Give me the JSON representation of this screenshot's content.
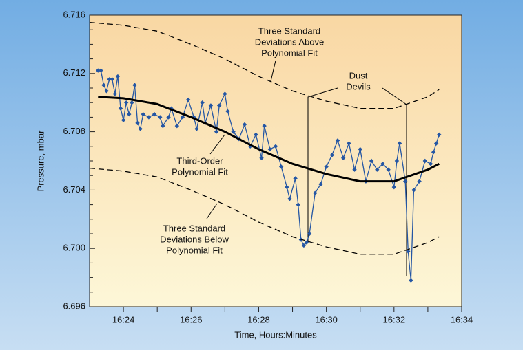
{
  "chart_data": {
    "type": "line",
    "xlabel": "Time, Hours:Minutes",
    "ylabel": "Pressure, mbar",
    "xlim": [
      "16:23",
      "16:34"
    ],
    "xticks": [
      "16:24",
      "16:26",
      "16:28",
      "16:30",
      "16:32",
      "16:34"
    ],
    "xminor": [
      "16:25",
      "16:27",
      "16:29",
      "16:31",
      "16:33"
    ],
    "ylim": [
      6.696,
      6.716
    ],
    "yticks": [
      {
        "value": 6.696,
        "label": "6.696"
      },
      {
        "value": 6.7,
        "label": "6.700"
      },
      6.704,
      6.708,
      6.712,
      6.716
    ],
    "yminor": [
      6.697,
      6.698,
      6.699,
      6.701,
      6.702,
      6.703,
      6.705,
      6.706,
      6.707,
      6.709,
      6.71,
      6.711,
      6.713,
      6.714,
      6.715
    ],
    "series": [
      {
        "color": "#2456a4",
        "marker": "diamond",
        "dash": false,
        "width": 1.3,
        "x": [
          "16:23:15",
          "16:23:20",
          "16:23:25",
          "16:23:30",
          "16:23:35",
          "16:23:40",
          "16:23:45",
          "16:23:50",
          "16:23:55",
          "16:24:00",
          "16:24:05",
          "16:24:10",
          "16:24:15",
          "16:24:20",
          "16:24:25",
          "16:24:30",
          "16:24:35",
          "16:24:45",
          "16:24:55",
          "16:25:05",
          "16:25:10",
          "16:25:20",
          "16:25:25",
          "16:25:35",
          "16:25:45",
          "16:25:55",
          "16:26:05",
          "16:26:10",
          "16:26:20",
          "16:26:25",
          "16:26:35",
          "16:26:45",
          "16:26:50",
          "16:27:00",
          "16:27:05",
          "16:27:15",
          "16:27:25",
          "16:27:35",
          "16:27:45",
          "16:27:55",
          "16:28:05",
          "16:28:10",
          "16:28:20",
          "16:28:30",
          "16:28:40",
          "16:28:50",
          "16:28:55",
          "16:29:05",
          "16:29:10",
          "16:29:15",
          "16:29:20",
          "16:29:25",
          "16:29:30",
          "16:29:40",
          "16:29:50",
          "16:30:00",
          "16:30:10",
          "16:30:20",
          "16:30:30",
          "16:30:40",
          "16:30:50",
          "16:31:00",
          "16:31:10",
          "16:31:20",
          "16:31:30",
          "16:31:40",
          "16:31:50",
          "16:32:00",
          "16:32:05",
          "16:32:10",
          "16:32:20",
          "16:32:25",
          "16:32:30",
          "16:32:35",
          "16:32:45",
          "16:32:55",
          "16:33:05",
          "16:33:10",
          "16:33:15",
          "16:33:20"
        ],
        "values": [
          6.7122,
          6.7122,
          6.7112,
          6.7108,
          6.7116,
          6.7116,
          6.7106,
          6.7118,
          6.7096,
          6.7088,
          6.71,
          6.7092,
          6.71,
          6.7112,
          6.7086,
          6.7082,
          6.7092,
          6.709,
          6.7092,
          6.709,
          6.7084,
          6.709,
          6.7096,
          6.7084,
          6.709,
          6.7102,
          6.709,
          6.7082,
          6.71,
          6.7086,
          6.7098,
          6.708,
          6.7098,
          6.7106,
          6.7094,
          6.708,
          6.7075,
          6.7085,
          6.707,
          6.7078,
          6.7062,
          6.7084,
          6.7068,
          6.707,
          6.7056,
          6.7042,
          6.7034,
          6.7048,
          6.703,
          6.7006,
          6.7002,
          6.7004,
          6.701,
          6.7038,
          6.7044,
          6.7056,
          6.7064,
          6.7074,
          6.7062,
          6.7072,
          6.7054,
          6.7068,
          6.7046,
          6.706,
          6.7054,
          6.7058,
          6.7054,
          6.7042,
          6.706,
          6.7072,
          6.7046,
          6.6998,
          6.6978,
          6.704,
          6.7046,
          6.706,
          6.7058,
          6.7066,
          6.7072,
          6.7078
        ]
      },
      {
        "color": "#000000",
        "marker": "none",
        "dash": false,
        "width": 3,
        "x": [
          "16:23:15",
          "16:24",
          "16:25",
          "16:26",
          "16:27",
          "16:28",
          "16:29",
          "16:30",
          "16:31",
          "16:32",
          "16:33",
          "16:33:20"
        ],
        "values": [
          6.7104,
          6.7103,
          6.7099,
          6.709,
          6.708,
          6.7068,
          6.7058,
          6.7051,
          6.7046,
          6.7046,
          6.7054,
          6.7058
        ]
      },
      {
        "color": "#000000",
        "marker": "none",
        "dash": true,
        "width": 1.3,
        "x": [
          "16:23:00",
          "16:24",
          "16:25",
          "16:26",
          "16:27",
          "16:28",
          "16:29",
          "16:30",
          "16:31",
          "16:32",
          "16:33",
          "16:33:20"
        ],
        "values": [
          6.7155,
          6.7153,
          6.7149,
          6.714,
          6.713,
          6.7118,
          6.7108,
          6.7101,
          6.7096,
          6.7096,
          6.7104,
          6.7109
        ]
      },
      {
        "color": "#000000",
        "marker": "none",
        "dash": true,
        "width": 1.3,
        "x": [
          "16:23:00",
          "16:24",
          "16:25",
          "16:26",
          "16:27",
          "16:28",
          "16:29",
          "16:30",
          "16:31",
          "16:32",
          "16:33",
          "16:33:20"
        ],
        "values": [
          6.7055,
          6.7053,
          6.7049,
          6.704,
          6.703,
          6.7018,
          6.7008,
          6.7001,
          6.6996,
          6.6996,
          6.7004,
          6.7008
        ]
      }
    ],
    "annotations": [
      {
        "lines": [
          "Three Standard",
          "Deviations Above",
          "Polynomial Fit"
        ]
      },
      {
        "lines": [
          "Dust",
          "Devils"
        ]
      },
      {
        "lines": [
          "Third-Order",
          "Polynomial Fit"
        ]
      },
      {
        "lines": [
          "Three Standard",
          "Deviations Below",
          "Polynomial Fit"
        ]
      }
    ]
  }
}
